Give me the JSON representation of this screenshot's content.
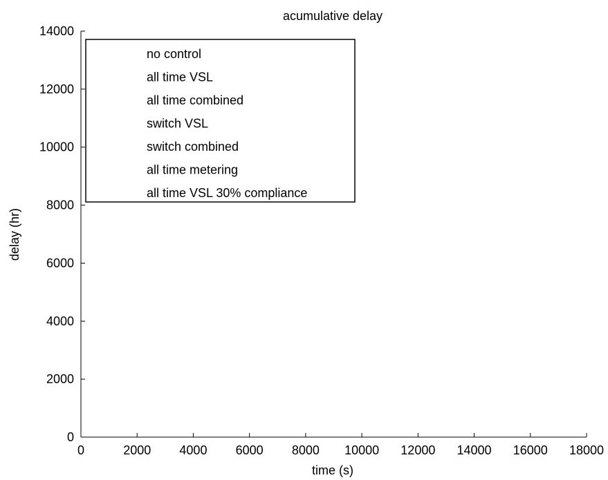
{
  "chart_data": {
    "type": "line",
    "title": "acumulative delay",
    "xlabel": "time (s)",
    "ylabel": "delay (hr)",
    "xlim": [
      0,
      18000
    ],
    "ylim": [
      0,
      14000
    ],
    "x_ticks": [
      0,
      2000,
      4000,
      6000,
      8000,
      10000,
      12000,
      14000,
      16000,
      18000
    ],
    "y_ticks": [
      0,
      2000,
      4000,
      6000,
      8000,
      10000,
      12000,
      14000
    ],
    "grid": false,
    "legend_position": "top-left",
    "series": [
      {
        "name": "no control",
        "x": [],
        "values": []
      },
      {
        "name": "all time VSL",
        "x": [],
        "values": []
      },
      {
        "name": "all time combined",
        "x": [],
        "values": []
      },
      {
        "name": "switch VSL",
        "x": [],
        "values": []
      },
      {
        "name": "switch combined",
        "x": [],
        "values": []
      },
      {
        "name": "all time metering",
        "x": [],
        "values": []
      },
      {
        "name": "all time VSL 30% compliance",
        "x": [],
        "values": []
      }
    ]
  }
}
